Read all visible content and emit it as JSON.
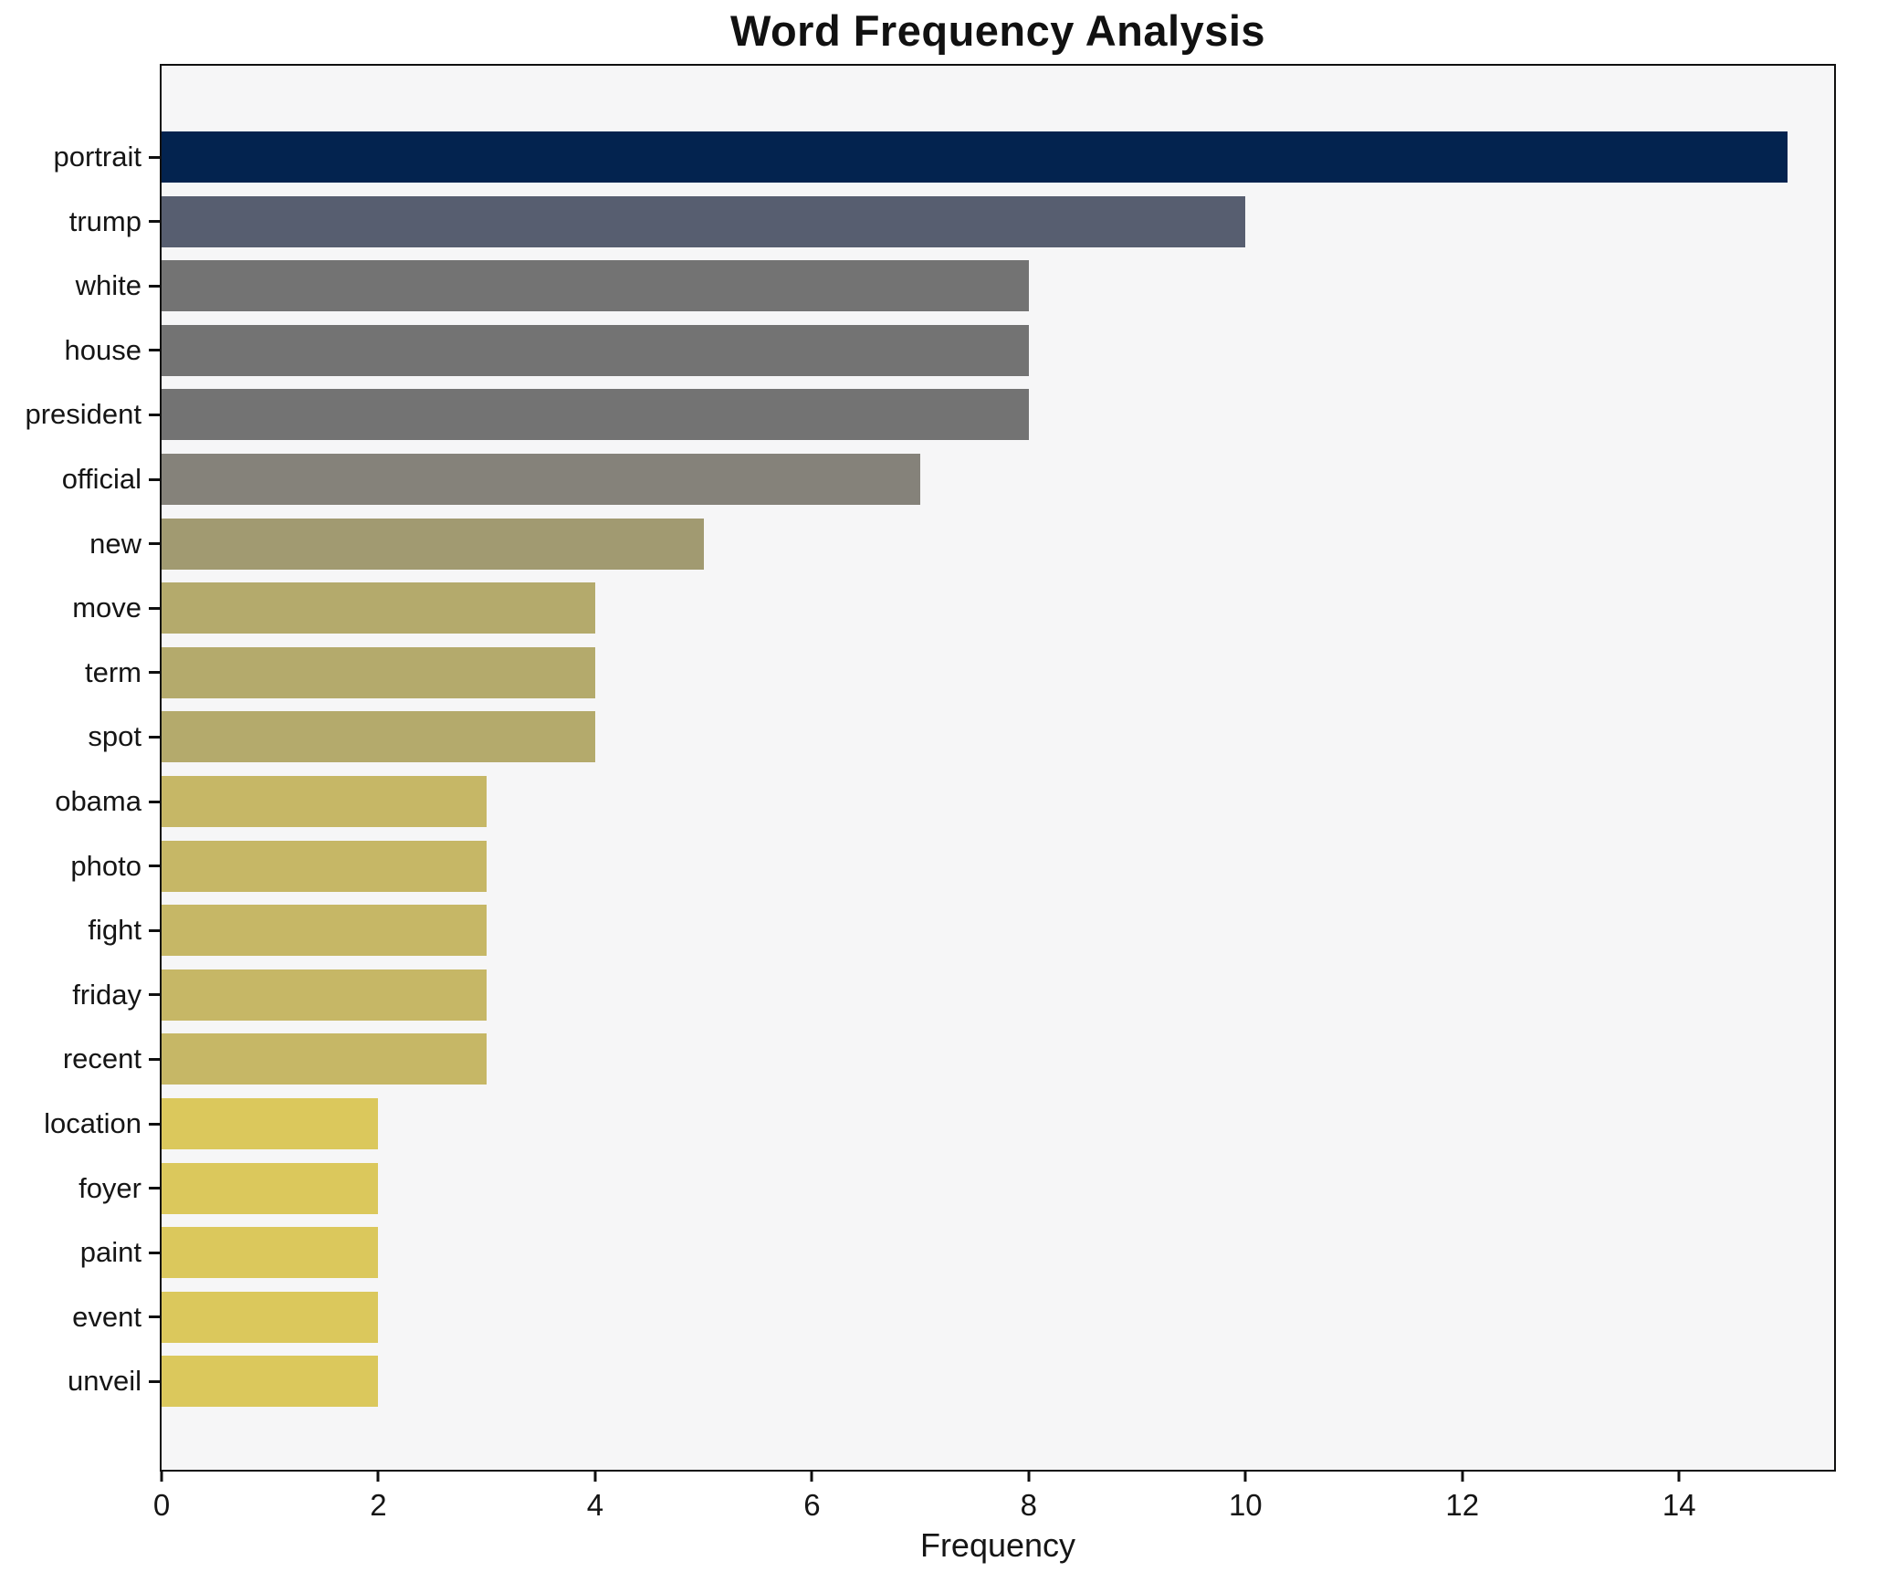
{
  "chart_data": {
    "type": "bar",
    "orientation": "horizontal",
    "title": "Word Frequency Analysis",
    "xlabel": "Frequency",
    "ylabel": "",
    "categories": [
      "portrait",
      "trump",
      "white",
      "house",
      "president",
      "official",
      "new",
      "move",
      "term",
      "spot",
      "obama",
      "photo",
      "fight",
      "friday",
      "recent",
      "location",
      "foyer",
      "paint",
      "event",
      "unveil"
    ],
    "values": [
      15,
      10,
      8,
      8,
      8,
      7,
      5,
      4,
      4,
      4,
      3,
      3,
      3,
      3,
      3,
      2,
      2,
      2,
      2,
      2
    ],
    "bar_colors": [
      "#03234f",
      "#575e70",
      "#737373",
      "#737373",
      "#737373",
      "#85827a",
      "#a19a71",
      "#b4aa6c",
      "#b4aa6c",
      "#b4aa6c",
      "#c6b766",
      "#c6b766",
      "#c6b766",
      "#c6b766",
      "#c6b766",
      "#dbc85c",
      "#dbc85c",
      "#dbc85c",
      "#dbc85c",
      "#dbc85c"
    ],
    "xlim": [
      0,
      15.43
    ],
    "xticks": [
      0,
      2,
      4,
      6,
      8,
      10,
      12,
      14
    ],
    "grid": false,
    "legend": "none",
    "plot_background": "#f6f6f7",
    "figure_background": "#ffffff",
    "spine_color": "#101010",
    "text_color": "#151515"
  }
}
